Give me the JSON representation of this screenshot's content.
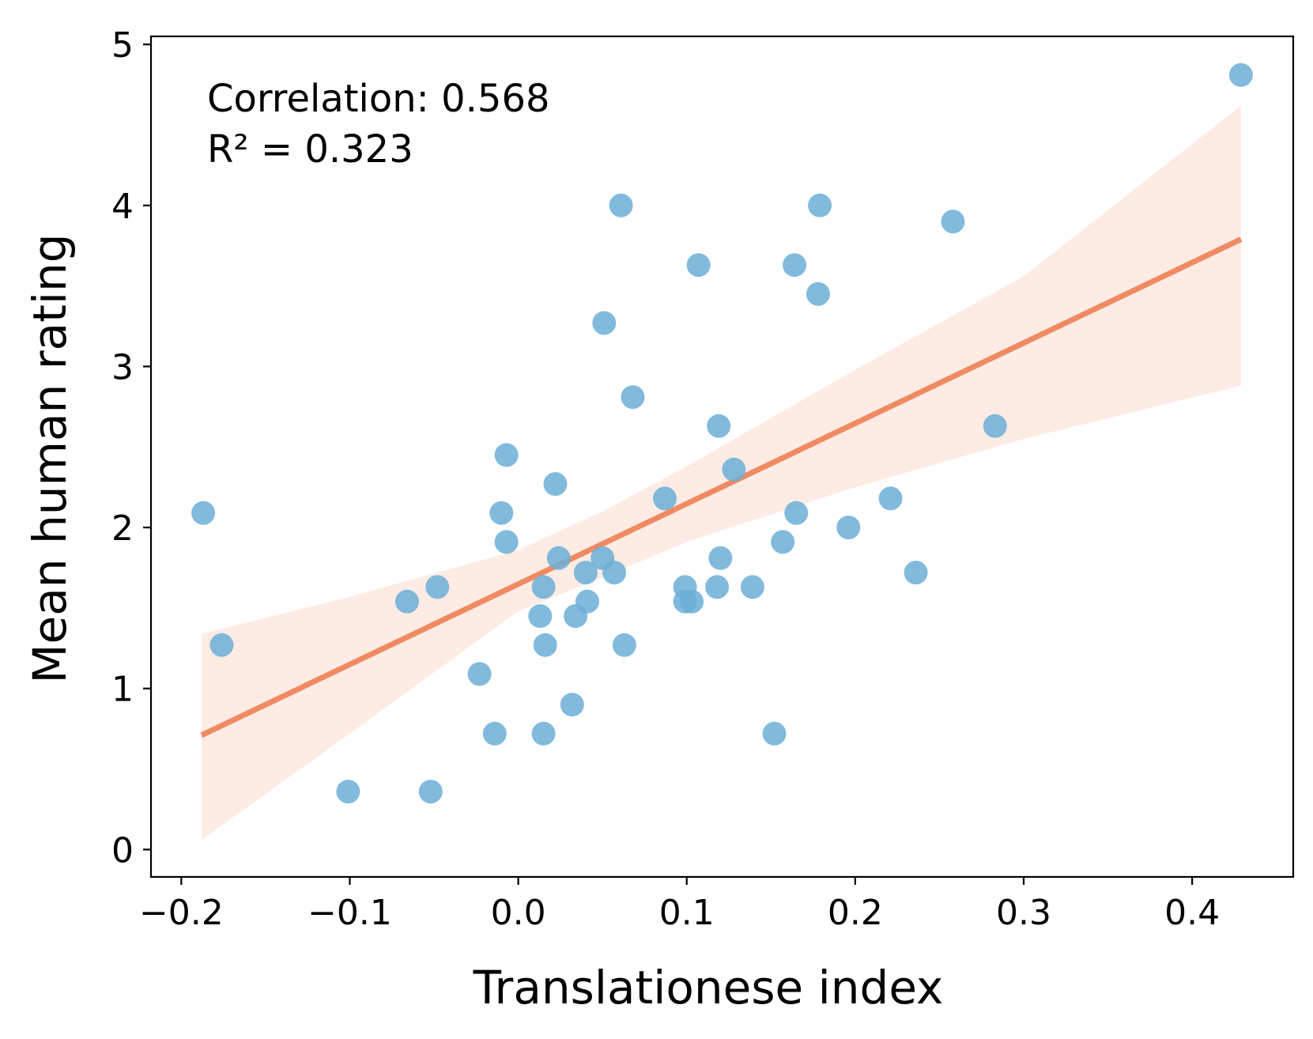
{
  "chart_data": {
    "type": "scatter",
    "xlabel": "Translationese index",
    "ylabel": "Mean human rating",
    "xlim": [
      -0.218,
      0.46
    ],
    "ylim": [
      -0.17,
      5.05
    ],
    "xticks": [
      -0.2,
      -0.1,
      0.0,
      0.1,
      0.2,
      0.3,
      0.4
    ],
    "xtick_labels": [
      "−0.2",
      "−0.1",
      "0.0",
      "0.1",
      "0.2",
      "0.3",
      "0.4"
    ],
    "yticks": [
      0,
      1,
      2,
      3,
      4,
      5
    ],
    "ytick_labels": [
      "0",
      "1",
      "2",
      "3",
      "4",
      "5"
    ],
    "grid": false,
    "annotations": [
      "Correlation: 0.568",
      "R² = 0.323"
    ],
    "colors": {
      "points": "#6baed6",
      "fit_line": "#ef8a62",
      "ci_band": "#fde0d2"
    },
    "points": [
      {
        "x": -0.187,
        "y": 2.09
      },
      {
        "x": -0.176,
        "y": 1.27
      },
      {
        "x": -0.101,
        "y": 0.36
      },
      {
        "x": -0.066,
        "y": 1.54
      },
      {
        "x": -0.048,
        "y": 1.63
      },
      {
        "x": -0.052,
        "y": 0.36
      },
      {
        "x": -0.023,
        "y": 1.09
      },
      {
        "x": -0.014,
        "y": 0.72
      },
      {
        "x": -0.01,
        "y": 2.09
      },
      {
        "x": -0.007,
        "y": 2.45
      },
      {
        "x": -0.007,
        "y": 1.91
      },
      {
        "x": 0.013,
        "y": 1.45
      },
      {
        "x": 0.015,
        "y": 1.63
      },
      {
        "x": 0.016,
        "y": 1.27
      },
      {
        "x": 0.015,
        "y": 0.72
      },
      {
        "x": 0.022,
        "y": 2.27
      },
      {
        "x": 0.024,
        "y": 1.81
      },
      {
        "x": 0.032,
        "y": 0.9
      },
      {
        "x": 0.034,
        "y": 1.45
      },
      {
        "x": 0.04,
        "y": 1.72
      },
      {
        "x": 0.041,
        "y": 1.54
      },
      {
        "x": 0.05,
        "y": 1.81
      },
      {
        "x": 0.051,
        "y": 3.27
      },
      {
        "x": 0.057,
        "y": 1.72
      },
      {
        "x": 0.061,
        "y": 4.0
      },
      {
        "x": 0.063,
        "y": 1.27
      },
      {
        "x": 0.068,
        "y": 2.81
      },
      {
        "x": 0.087,
        "y": 2.18
      },
      {
        "x": 0.099,
        "y": 1.63
      },
      {
        "x": 0.099,
        "y": 1.54
      },
      {
        "x": 0.103,
        "y": 1.54
      },
      {
        "x": 0.107,
        "y": 3.63
      },
      {
        "x": 0.118,
        "y": 1.63
      },
      {
        "x": 0.119,
        "y": 2.63
      },
      {
        "x": 0.12,
        "y": 1.81
      },
      {
        "x": 0.128,
        "y": 2.36
      },
      {
        "x": 0.139,
        "y": 1.63
      },
      {
        "x": 0.152,
        "y": 0.72
      },
      {
        "x": 0.157,
        "y": 1.91
      },
      {
        "x": 0.164,
        "y": 3.63
      },
      {
        "x": 0.165,
        "y": 2.09
      },
      {
        "x": 0.178,
        "y": 3.45
      },
      {
        "x": 0.179,
        "y": 4.0
      },
      {
        "x": 0.196,
        "y": 2.0
      },
      {
        "x": 0.221,
        "y": 2.18
      },
      {
        "x": 0.236,
        "y": 1.72
      },
      {
        "x": 0.258,
        "y": 3.9
      },
      {
        "x": 0.283,
        "y": 2.63
      },
      {
        "x": 0.429,
        "y": 4.81
      }
    ],
    "fit_line": {
      "x": [
        -0.188,
        0.429
      ],
      "y": [
        0.71,
        3.79
      ]
    },
    "ci_band": {
      "x": [
        -0.188,
        -0.1,
        0.0,
        0.05,
        0.1,
        0.2,
        0.3,
        0.429
      ],
      "upper": [
        1.34,
        1.57,
        1.86,
        2.1,
        2.38,
        2.98,
        3.56,
        4.62
      ],
      "lower": [
        0.06,
        0.72,
        1.48,
        1.69,
        1.91,
        2.25,
        2.55,
        2.88
      ]
    }
  }
}
